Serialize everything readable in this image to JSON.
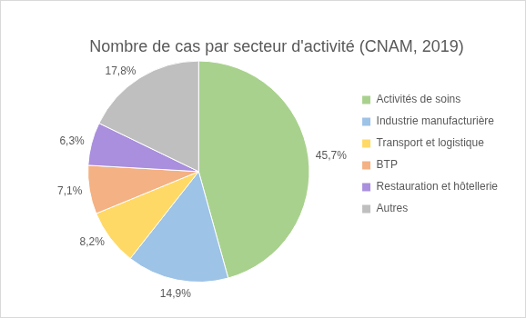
{
  "chart_data": {
    "type": "pie",
    "title": "Nombre de cas par secteur d'activité (CNAM, 2019)",
    "categories": [
      "Activités de soins",
      "Industrie manufacturière",
      "Transport et logistique",
      "BTP",
      "Restauration et hôtellerie",
      "Autres"
    ],
    "values": [
      45.7,
      14.9,
      8.2,
      7.1,
      6.3,
      17.8
    ],
    "value_labels": [
      "45,7%",
      "14,9%",
      "8,2%",
      "7,1%",
      "6,3%",
      "17,8%"
    ],
    "colors": [
      "#a9d18e",
      "#9dc3e6",
      "#ffd966",
      "#f4b183",
      "#a98fdd",
      "#bfbfbf"
    ],
    "legend": "right",
    "data_labels": true
  }
}
